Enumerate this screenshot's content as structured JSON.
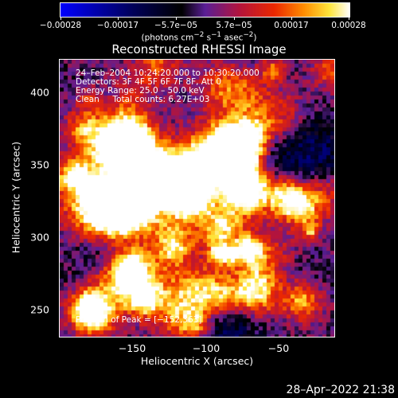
{
  "colorbar": {
    "ticks": [
      "−0.00028",
      "−0.00017",
      "−5.7e−05",
      "5.7e−05",
      "0.00017",
      "0.00028"
    ],
    "units_parts": {
      "a": "(photons cm",
      "b": "−2",
      "c": " s",
      "d": "−1",
      "e": " asec",
      "f": "−2",
      "g": ")"
    }
  },
  "title": "Reconstructed RHESSI Image",
  "info": {
    "time": "24–Feb–2004 10:24:20.000 to 10:30:20.000",
    "detectors": "Detectors: 3F 4F 5F 6F 7F 8F, Att 0",
    "energy": "Energy Range: 25.0 – 50.0 keV",
    "clean": "Clean     Total counts: 6.27E+03",
    "peak": "Position of Peak = [−152,363]"
  },
  "axes": {
    "xlabel": "Heliocentric X (arcsec)",
    "ylabel": "Heliocentric Y (arcsec)",
    "xticks": [
      "−150",
      "−100",
      "−50"
    ],
    "yticks": [
      "400",
      "350",
      "300",
      "250"
    ]
  },
  "timestamp": "28–Apr–2022 21:38",
  "chart_data": {
    "type": "heatmap",
    "title": "Reconstructed RHESSI Image",
    "xlabel": "Heliocentric X (arcsec)",
    "ylabel": "Heliocentric Y (arcsec)",
    "xlim": [
      -197,
      -7
    ],
    "ylim": [
      230,
      423
    ],
    "color_range": [
      -0.00028,
      0.00028
    ],
    "peak": [
      -152,
      363
    ]
  }
}
